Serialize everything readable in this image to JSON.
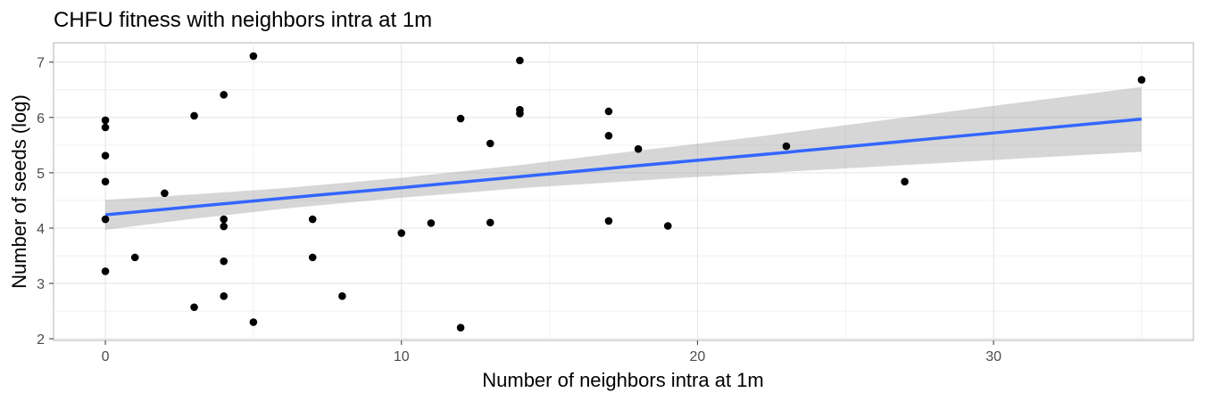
{
  "chart_data": {
    "type": "scatter",
    "title": "CHFU fitness with neighbors intra at 1m",
    "xlabel": "Number of neighbors intra at 1m",
    "ylabel": "Number of seeds (log)",
    "xlim": [
      -1.75,
      36.75
    ],
    "ylim": [
      1.97,
      7.35
    ],
    "x_ticks": [
      0,
      10,
      20,
      30
    ],
    "y_ticks": [
      2,
      3,
      4,
      5,
      6,
      7
    ],
    "grid": true,
    "legend": "none",
    "series": [
      {
        "points": [
          {
            "x": 0,
            "y": 5.95
          },
          {
            "x": 0,
            "y": 5.82
          },
          {
            "x": 0,
            "y": 5.31
          },
          {
            "x": 0,
            "y": 4.84
          },
          {
            "x": 0,
            "y": 4.16
          },
          {
            "x": 0,
            "y": 3.22
          },
          {
            "x": 1,
            "y": 3.47
          },
          {
            "x": 2,
            "y": 4.63
          },
          {
            "x": 3,
            "y": 6.03
          },
          {
            "x": 3,
            "y": 2.57
          },
          {
            "x": 4,
            "y": 6.41
          },
          {
            "x": 4,
            "y": 4.16
          },
          {
            "x": 4,
            "y": 4.03
          },
          {
            "x": 4,
            "y": 3.4
          },
          {
            "x": 4,
            "y": 2.77
          },
          {
            "x": 5,
            "y": 7.11
          },
          {
            "x": 5,
            "y": 2.3
          },
          {
            "x": 7,
            "y": 4.16
          },
          {
            "x": 7,
            "y": 3.47
          },
          {
            "x": 8,
            "y": 2.77
          },
          {
            "x": 10,
            "y": 3.91
          },
          {
            "x": 11,
            "y": 4.09
          },
          {
            "x": 12,
            "y": 5.98
          },
          {
            "x": 12,
            "y": 2.2
          },
          {
            "x": 13,
            "y": 5.53
          },
          {
            "x": 13,
            "y": 4.1
          },
          {
            "x": 14,
            "y": 7.03
          },
          {
            "x": 14,
            "y": 6.14
          },
          {
            "x": 14,
            "y": 6.07
          },
          {
            "x": 17,
            "y": 6.11
          },
          {
            "x": 17,
            "y": 5.67
          },
          {
            "x": 17,
            "y": 4.13
          },
          {
            "x": 18,
            "y": 5.43
          },
          {
            "x": 19,
            "y": 4.04
          },
          {
            "x": 23,
            "y": 5.48
          },
          {
            "x": 27,
            "y": 4.84
          },
          {
            "x": 35,
            "y": 6.68
          }
        ],
        "color": "#000000"
      }
    ],
    "fit_line": {
      "method": "linear",
      "color": "#3366ff",
      "band_color": "#999999",
      "points": [
        {
          "x": 0,
          "y": 4.24,
          "lower": 3.97,
          "upper": 4.51
        },
        {
          "x": 3,
          "y": 4.39,
          "lower": 4.17,
          "upper": 4.61
        },
        {
          "x": 6,
          "y": 4.54,
          "lower": 4.35,
          "upper": 4.72
        },
        {
          "x": 10,
          "y": 4.73,
          "lower": 4.55,
          "upper": 4.91
        },
        {
          "x": 14,
          "y": 4.93,
          "lower": 4.72,
          "upper": 5.14
        },
        {
          "x": 18,
          "y": 5.13,
          "lower": 4.86,
          "upper": 5.4
        },
        {
          "x": 22,
          "y": 5.32,
          "lower": 4.99,
          "upper": 5.65
        },
        {
          "x": 26,
          "y": 5.52,
          "lower": 5.11,
          "upper": 5.93
        },
        {
          "x": 30,
          "y": 5.72,
          "lower": 5.23,
          "upper": 6.21
        },
        {
          "x": 35,
          "y": 5.97,
          "lower": 5.38,
          "upper": 6.55
        }
      ]
    }
  }
}
